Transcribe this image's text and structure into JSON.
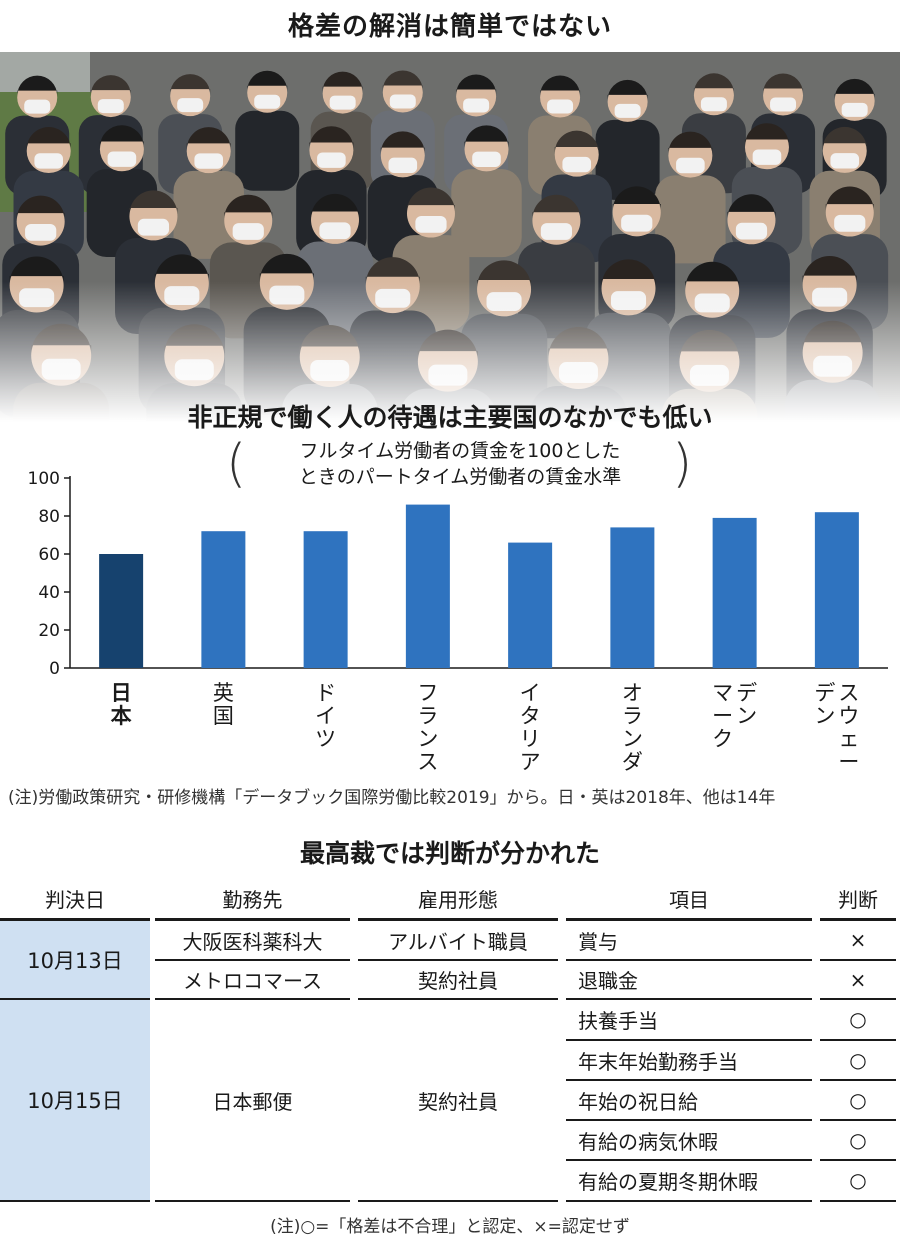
{
  "header": {
    "title": "格差の解消は簡単ではない"
  },
  "chart_data": {
    "type": "bar",
    "title": "非正規で働く人の待遇は主要国のなかでも低い",
    "subtitle_lines": [
      "フルタイム労働者の賃金を100とした",
      "ときのパートタイム労働者の賃金水準"
    ],
    "categories": [
      "日本",
      "英国",
      "ドイツ",
      "フランス",
      "イタリア",
      "オランダ",
      "デンマーク",
      "スウェーデン"
    ],
    "category_lines": [
      [
        "日本"
      ],
      [
        "英国"
      ],
      [
        "ドイツ"
      ],
      [
        "フランス"
      ],
      [
        "イタリア"
      ],
      [
        "オランダ"
      ],
      [
        "デン",
        "マーク"
      ],
      [
        "スウェー",
        "デン"
      ]
    ],
    "values": [
      60,
      72,
      72,
      86,
      66,
      74,
      79,
      82
    ],
    "highlight_index": 0,
    "ylim": [
      0,
      100
    ],
    "yticks": [
      0,
      20,
      40,
      60,
      80,
      100
    ],
    "colors": {
      "highlight": "#16426e",
      "default": "#2f73bf"
    },
    "note": "(注)労働政策研究・研修機構「データブック国際労働比較2019」から。日・英は2018年、他は14年"
  },
  "table": {
    "title": "最高裁では判断が分かれた",
    "headers": [
      "判決日",
      "勤務先",
      "雇用形態",
      "項目",
      "判断"
    ],
    "groups": [
      {
        "date": "10月13日",
        "rows": [
          {
            "employer": "大阪医科薬科大",
            "form": "アルバイト職員",
            "item": "賞与",
            "judgment": "×"
          },
          {
            "employer": "メトロコマース",
            "form": "契約社員",
            "item": "退職金",
            "judgment": "×"
          }
        ]
      },
      {
        "date": "10月15日",
        "employer": "日本郵便",
        "form": "契約社員",
        "rows": [
          {
            "item": "扶養手当",
            "judgment": "○"
          },
          {
            "item": "年末年始勤務手当",
            "judgment": "○"
          },
          {
            "item": "年始の祝日給",
            "judgment": "○"
          },
          {
            "item": "有給の病気休暇",
            "judgment": "○"
          },
          {
            "item": "有給の夏期冬期休暇",
            "judgment": "○"
          }
        ]
      }
    ],
    "note": "(注)○=「格差は不合理」と認定、×=認定せず"
  }
}
